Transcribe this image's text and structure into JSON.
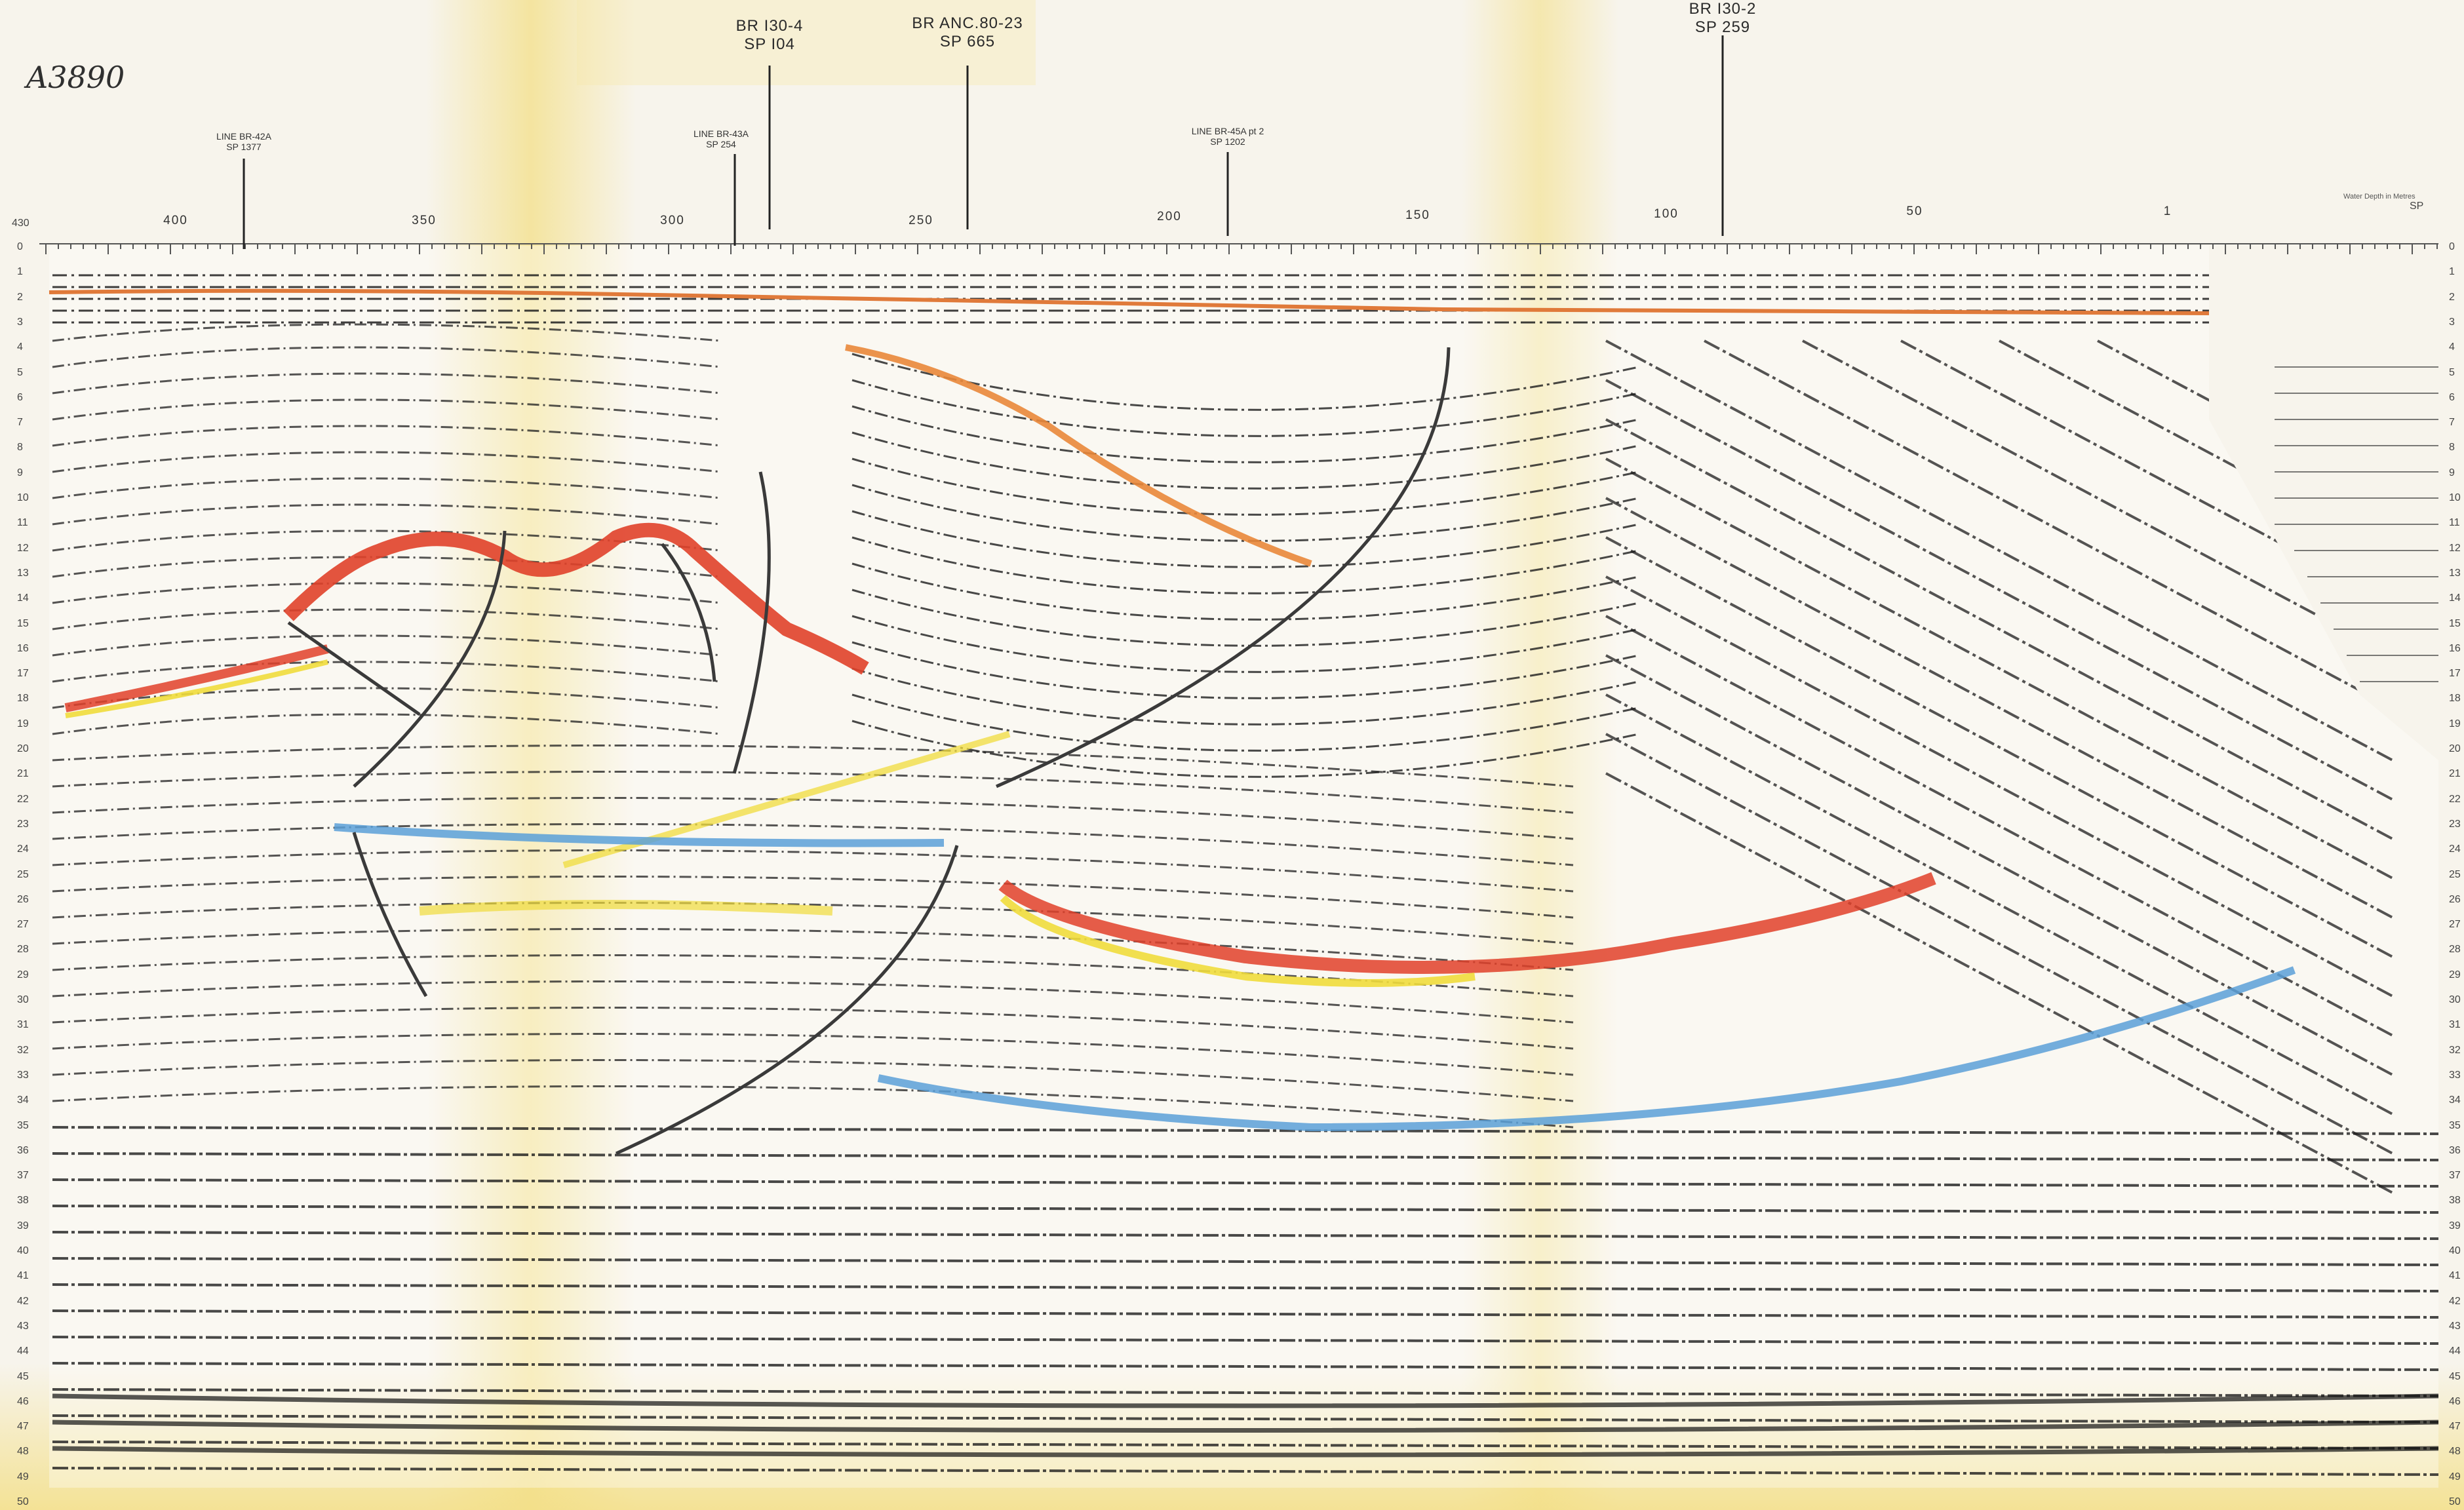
{
  "annotation": {
    "handwritten_id": "A3890"
  },
  "wells": [
    {
      "name": "BR I30-4",
      "sp": "SP I04"
    },
    {
      "name": "BR ANC.80-23",
      "sp": "SP  665"
    },
    {
      "name": "BR I30-2",
      "sp": "SP  259"
    }
  ],
  "line_ties": [
    {
      "line": "LINE BR-42A",
      "sp": "SP 1377"
    },
    {
      "line": "LINE BR-43A",
      "sp": "SP 254"
    },
    {
      "line": "LINE BR-45A pt 2",
      "sp": "SP 1202"
    }
  ],
  "shotpoint_axis": {
    "start_label": "430",
    "labels": [
      "400",
      "350",
      "300",
      "250",
      "200",
      "150",
      "100",
      "50",
      "1"
    ],
    "end_label": "SP",
    "water_depth_note": "Water Depth in Metres"
  },
  "time_axis": {
    "labels": [
      "0",
      "1",
      "2",
      "3",
      "4",
      "5",
      "6",
      "7",
      "8",
      "9",
      "10",
      "11",
      "12",
      "13",
      "14",
      "15",
      "16",
      "17",
      "18",
      "19",
      "20",
      "21",
      "22",
      "23",
      "24",
      "25",
      "26",
      "27",
      "28",
      "29",
      "30",
      "31",
      "32",
      "33",
      "34",
      "35",
      "36",
      "37",
      "38",
      "39",
      "40",
      "41",
      "42",
      "43",
      "44",
      "45",
      "46",
      "47",
      "48",
      "49",
      "50"
    ]
  },
  "colors": {
    "paper": "#f7f4ec",
    "trace": "#1c1c1c",
    "horizon_red": "#e0412a",
    "horizon_orange": "#e9873a",
    "horizon_yellow": "#f0dc3c",
    "horizon_blue": "#5aa0d8",
    "fault": "#3a3a3a",
    "stain": "#f3df86"
  }
}
